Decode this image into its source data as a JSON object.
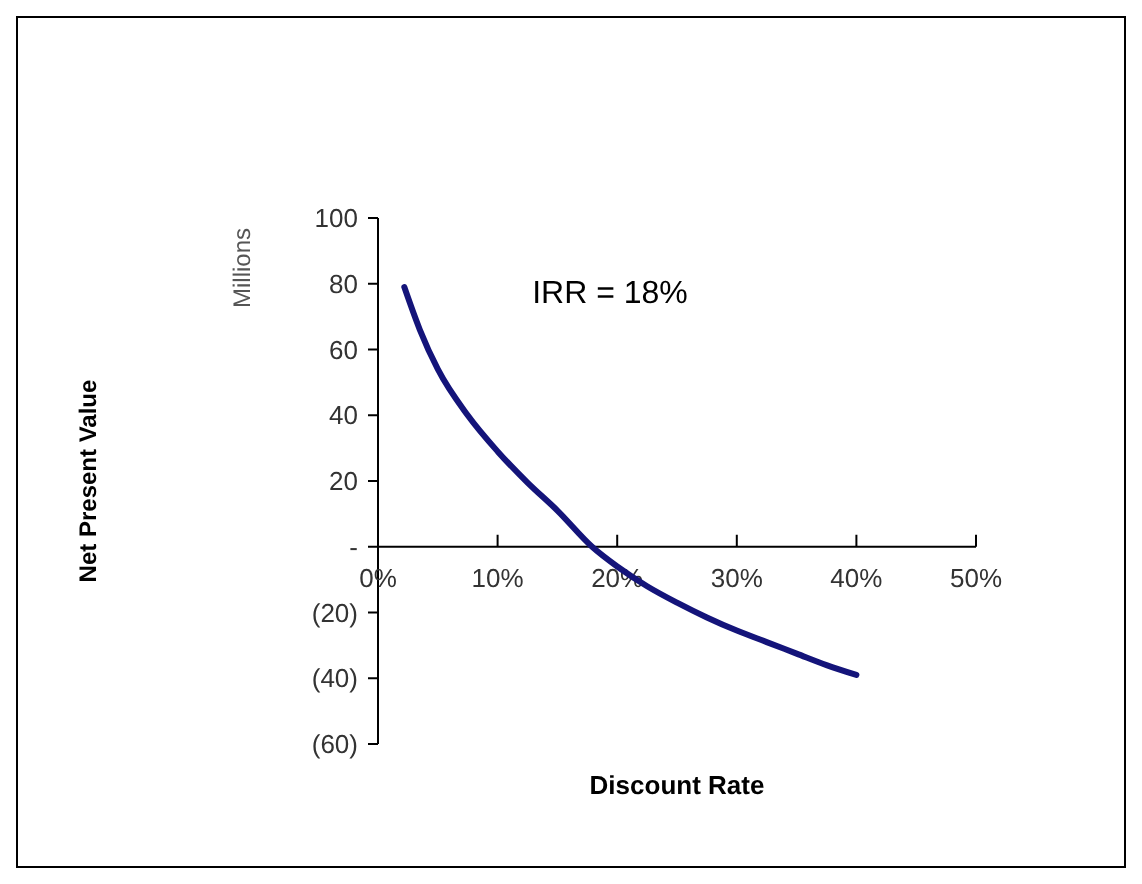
{
  "chart_data": {
    "type": "line",
    "xlabel": "Discount Rate",
    "ylabel": "Millions",
    "annotations": [
      "Net Present Value",
      "IRR = 18%"
    ],
    "x": [
      2.2,
      3.5,
      5,
      7.5,
      10,
      12.5,
      15,
      17.9,
      20,
      22.5,
      25,
      27.5,
      30,
      32.5,
      35,
      37.5,
      40
    ],
    "series": [
      {
        "color": "#14147a",
        "values": [
          79,
          66,
          54,
          40,
          29,
          19.5,
          11,
          0,
          -6,
          -12,
          -17,
          -21.5,
          -25.5,
          -29,
          -32.5,
          -36,
          -39
        ]
      }
    ],
    "xlim": [
      0,
      50
    ],
    "xticks": [
      {
        "value": 0,
        "label": "0%"
      },
      {
        "value": 10,
        "label": "10%"
      },
      {
        "value": 20,
        "label": "20%"
      },
      {
        "value": 30,
        "label": "30%"
      },
      {
        "value": 40,
        "label": "40%"
      },
      {
        "value": 50,
        "label": "50%"
      }
    ],
    "ylim": [
      -60,
      100
    ],
    "yticks": [
      100,
      80,
      60,
      40,
      20,
      {
        "value": 0,
        "label": "-"
      },
      {
        "value": -20,
        "label": "(20)"
      },
      {
        "value": -40,
        "label": "(40)"
      },
      {
        "value": -60,
        "label": "(60)"
      }
    ],
    "grid": false,
    "marker": "none",
    "line_style": "solid"
  }
}
